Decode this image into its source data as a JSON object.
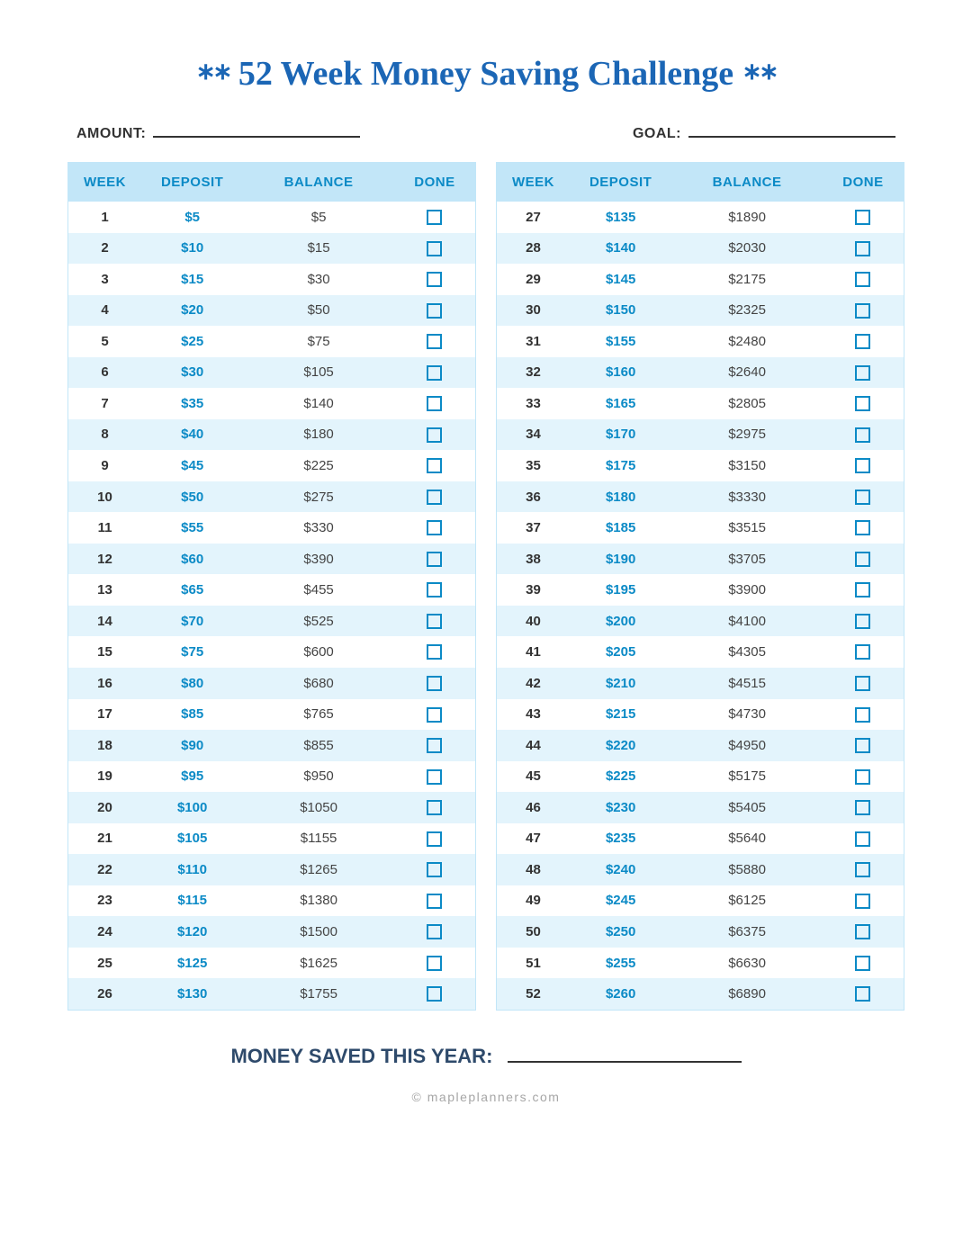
{
  "title": {
    "text": "52 Week Money Saving Challenge",
    "star": "∗∗",
    "color": "#1b66b5"
  },
  "fields": {
    "amount_label": "AMOUNT:",
    "goal_label": "GOAL:",
    "label_color": "#333333"
  },
  "columns": {
    "week": "WEEK",
    "deposit": "DEPOSIT",
    "balance": "BALANCE",
    "done": "DONE"
  },
  "style": {
    "header_bg": "#c2e6f8",
    "header_color": "#0b8ac6",
    "row_odd_bg": "#ffffff",
    "row_even_bg": "#e3f4fc",
    "border_color": "#c2e6f8",
    "deposit_color": "#0b8ac6",
    "check_border": "#0b8ac6",
    "week_color": "#333333"
  },
  "left_rows": [
    {
      "w": "1",
      "d": "$5",
      "b": "$5"
    },
    {
      "w": "2",
      "d": "$10",
      "b": "$15"
    },
    {
      "w": "3",
      "d": "$15",
      "b": "$30"
    },
    {
      "w": "4",
      "d": "$20",
      "b": "$50"
    },
    {
      "w": "5",
      "d": "$25",
      "b": "$75"
    },
    {
      "w": "6",
      "d": "$30",
      "b": "$105"
    },
    {
      "w": "7",
      "d": "$35",
      "b": "$140"
    },
    {
      "w": "8",
      "d": "$40",
      "b": "$180"
    },
    {
      "w": "9",
      "d": "$45",
      "b": "$225"
    },
    {
      "w": "10",
      "d": "$50",
      "b": "$275"
    },
    {
      "w": "11",
      "d": "$55",
      "b": "$330"
    },
    {
      "w": "12",
      "d": "$60",
      "b": "$390"
    },
    {
      "w": "13",
      "d": "$65",
      "b": "$455"
    },
    {
      "w": "14",
      "d": "$70",
      "b": "$525"
    },
    {
      "w": "15",
      "d": "$75",
      "b": "$600"
    },
    {
      "w": "16",
      "d": "$80",
      "b": "$680"
    },
    {
      "w": "17",
      "d": "$85",
      "b": "$765"
    },
    {
      "w": "18",
      "d": "$90",
      "b": "$855"
    },
    {
      "w": "19",
      "d": "$95",
      "b": "$950"
    },
    {
      "w": "20",
      "d": "$100",
      "b": "$1050"
    },
    {
      "w": "21",
      "d": "$105",
      "b": "$1155"
    },
    {
      "w": "22",
      "d": "$110",
      "b": "$1265"
    },
    {
      "w": "23",
      "d": "$115",
      "b": "$1380"
    },
    {
      "w": "24",
      "d": "$120",
      "b": "$1500"
    },
    {
      "w": "25",
      "d": "$125",
      "b": "$1625"
    },
    {
      "w": "26",
      "d": "$130",
      "b": "$1755"
    }
  ],
  "right_rows": [
    {
      "w": "27",
      "d": "$135",
      "b": "$1890"
    },
    {
      "w": "28",
      "d": "$140",
      "b": "$2030"
    },
    {
      "w": "29",
      "d": "$145",
      "b": "$2175"
    },
    {
      "w": "30",
      "d": "$150",
      "b": "$2325"
    },
    {
      "w": "31",
      "d": "$155",
      "b": "$2480"
    },
    {
      "w": "32",
      "d": "$160",
      "b": "$2640"
    },
    {
      "w": "33",
      "d": "$165",
      "b": "$2805"
    },
    {
      "w": "34",
      "d": "$170",
      "b": "$2975"
    },
    {
      "w": "35",
      "d": "$175",
      "b": "$3150"
    },
    {
      "w": "36",
      "d": "$180",
      "b": "$3330"
    },
    {
      "w": "37",
      "d": "$185",
      "b": "$3515"
    },
    {
      "w": "38",
      "d": "$190",
      "b": "$3705"
    },
    {
      "w": "39",
      "d": "$195",
      "b": "$3900"
    },
    {
      "w": "40",
      "d": "$200",
      "b": "$4100"
    },
    {
      "w": "41",
      "d": "$205",
      "b": "$4305"
    },
    {
      "w": "42",
      "d": "$210",
      "b": "$4515"
    },
    {
      "w": "43",
      "d": "$215",
      "b": "$4730"
    },
    {
      "w": "44",
      "d": "$220",
      "b": "$4950"
    },
    {
      "w": "45",
      "d": "$225",
      "b": "$5175"
    },
    {
      "w": "46",
      "d": "$230",
      "b": "$5405"
    },
    {
      "w": "47",
      "d": "$235",
      "b": "$5640"
    },
    {
      "w": "48",
      "d": "$240",
      "b": "$5880"
    },
    {
      "w": "49",
      "d": "$245",
      "b": "$6125"
    },
    {
      "w": "50",
      "d": "$250",
      "b": "$6375"
    },
    {
      "w": "51",
      "d": "$255",
      "b": "$6630"
    },
    {
      "w": "52",
      "d": "$260",
      "b": "$6890"
    }
  ],
  "footer": {
    "label": "MONEY SAVED THIS YEAR:",
    "color": "#2e4a6b"
  },
  "attribution": "© mapleplanners.com"
}
